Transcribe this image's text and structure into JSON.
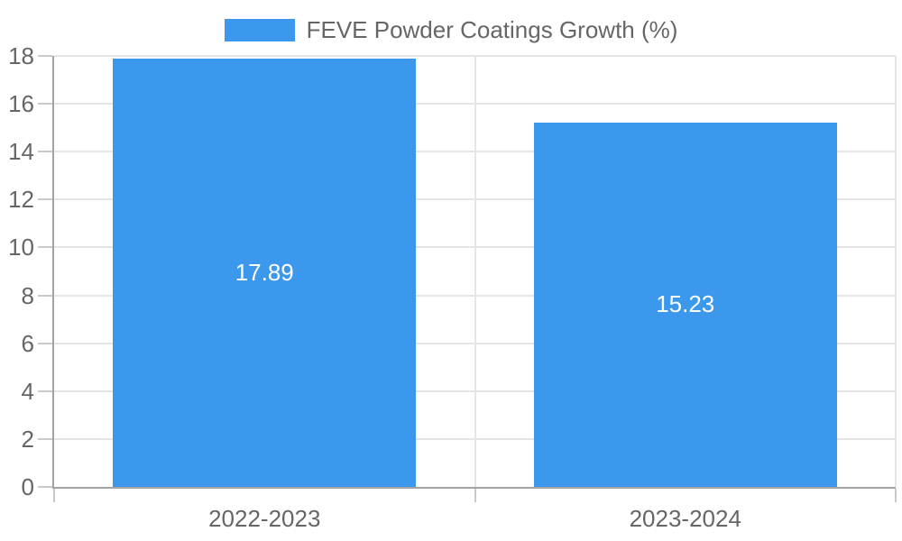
{
  "chart_data": {
    "type": "bar",
    "categories": [
      "2022-2023",
      "2023-2024"
    ],
    "values": [
      17.89,
      15.23
    ],
    "value_labels": [
      "17.89",
      "15.23"
    ],
    "title": "",
    "xlabel": "",
    "ylabel": "",
    "ylim": [
      0,
      18
    ],
    "ytick_step": 2,
    "ytick_labels": [
      "0",
      "2",
      "4",
      "6",
      "8",
      "10",
      "12",
      "14",
      "16",
      "18"
    ],
    "grid": true,
    "legend_position": "top",
    "legend": {
      "label": "FEVE Powder Coatings Growth (%)"
    },
    "colors": {
      "bar": "#3b98ec",
      "bar_label_text": "#ffffff",
      "axis_text": "#666666",
      "gridline": "#e5e5e5",
      "tick_mark": "#c9c9c9",
      "axis_border": "#a3a3a3",
      "background": "#ffffff"
    }
  }
}
